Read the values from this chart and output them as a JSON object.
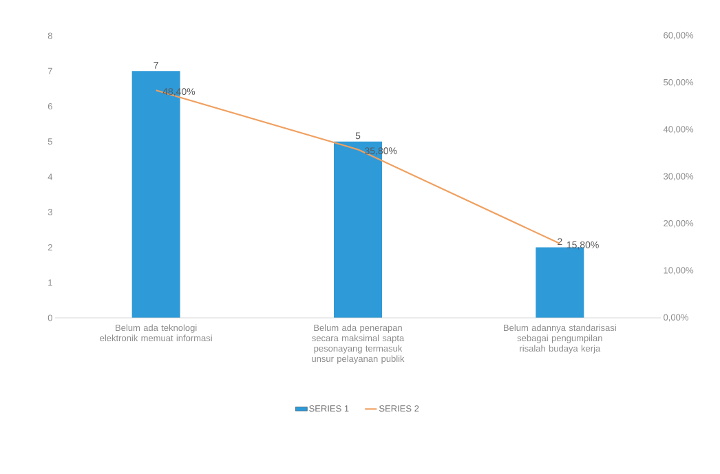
{
  "chart_data": {
    "type": "bar",
    "categories": [
      "Belum ada teknologi elektronik memuat informasi",
      "Belum ada penerapan secara maksimal sapta pesonayang termasuk unsur pelayanan publik",
      "Belum adannya standarisasi sebagai pengumpilan risalah budaya kerja"
    ],
    "series": [
      {
        "name": "SERIES 1",
        "color": "#2e9ad8",
        "values": [
          7,
          5,
          2
        ],
        "value_labels": [
          "7",
          "5",
          "2"
        ]
      },
      {
        "name": "SERIES 2",
        "type": "line",
        "axis": "y2",
        "color": "#f0a060",
        "values": [
          48.4,
          35.8,
          15.8
        ],
        "value_labels": [
          "48,40%",
          "35,80%",
          "15,80%"
        ]
      }
    ],
    "ylim": [
      0,
      8
    ],
    "yticks": [
      0,
      1,
      2,
      3,
      4,
      5,
      6,
      7,
      8
    ],
    "y2lim": [
      0,
      60
    ],
    "y2ticks": [
      {
        "value": 0,
        "label": "0,00%"
      },
      {
        "value": 10,
        "label": "10,00%"
      },
      {
        "value": 20,
        "label": "20,00%"
      },
      {
        "value": 30,
        "label": "30,00%"
      },
      {
        "value": 40,
        "label": "40,00%"
      },
      {
        "value": 50,
        "label": "50,00%"
      },
      {
        "value": 60,
        "label": "60,00%"
      }
    ],
    "legend": "bottom",
    "grid": false,
    "marker": "none"
  }
}
